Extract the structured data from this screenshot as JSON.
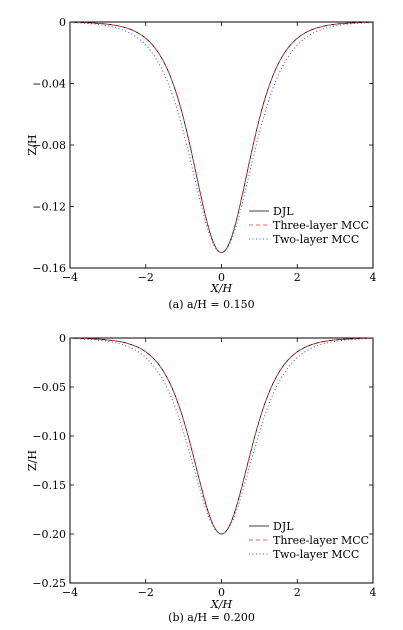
{
  "chart_data": [
    {
      "type": "line",
      "caption_label": "(a)",
      "caption_text": "a/H = 0.150",
      "xlabel": "X/H",
      "ylabel": "Z/H",
      "xlim": [
        -4,
        4
      ],
      "ylim": [
        -0.16,
        0
      ],
      "xticks": [
        "−4",
        "−2",
        "0",
        "2",
        "4"
      ],
      "yticks": [
        "0",
        "−0.04",
        "−0.08",
        "−0.12",
        "−0.16"
      ],
      "amplitude": 0.15,
      "legend": "bottom-right",
      "series": [
        {
          "name": "DJL",
          "style": "solid",
          "color": "#000000",
          "width": 0.8
        },
        {
          "name": "Three-layer MCC",
          "style": "dashed",
          "color": "#e03a2e",
          "width": 0.8
        },
        {
          "name": "Two-layer MCC",
          "style": "dotted",
          "color": "#3a4fd0",
          "width": 1.0
        }
      ]
    },
    {
      "type": "line",
      "caption_label": "(b)",
      "caption_text": "a/H = 0.200",
      "xlabel": "X/H",
      "ylabel": "Z/H",
      "xlim": [
        -4,
        4
      ],
      "ylim": [
        -0.25,
        0
      ],
      "xticks": [
        "−4",
        "−2",
        "0",
        "2",
        "4"
      ],
      "yticks": [
        "0",
        "−0.05",
        "−0.10",
        "−0.15",
        "−0.20",
        "−0.25"
      ],
      "amplitude": 0.2,
      "legend": "bottom-right",
      "series": [
        {
          "name": "DJL",
          "style": "solid",
          "color": "#000000",
          "width": 0.8
        },
        {
          "name": "Three-layer MCC",
          "style": "dashed",
          "color": "#e03a2e",
          "width": 0.8
        },
        {
          "name": "Two-layer MCC",
          "style": "dotted",
          "color": "#3a4fd0",
          "width": 1.0
        }
      ]
    }
  ]
}
